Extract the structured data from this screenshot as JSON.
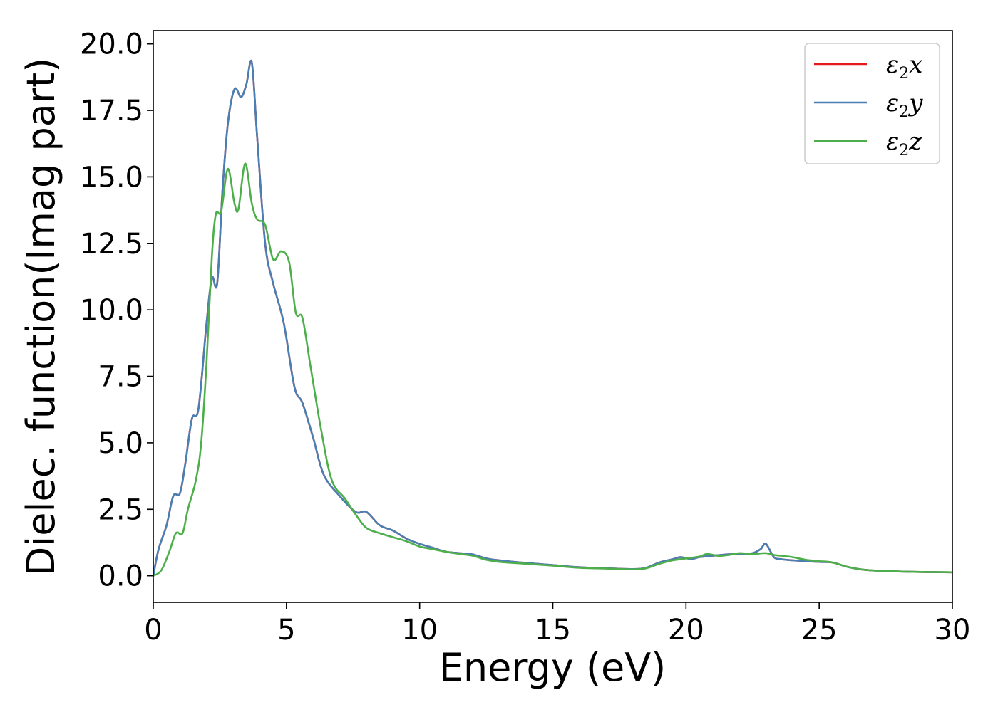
{
  "chart_data": {
    "type": "line",
    "xlabel": "Energy (eV)",
    "ylabel": "Dielec. function(Imag part)",
    "xlim": [
      0,
      30
    ],
    "ylim": [
      -1.0,
      20.5
    ],
    "xticks": [
      0,
      5,
      10,
      15,
      20,
      25,
      30
    ],
    "xtick_labels": [
      "0",
      "5",
      "10",
      "15",
      "20",
      "25",
      "30"
    ],
    "yticks": [
      0,
      2.5,
      5,
      7.5,
      10,
      12.5,
      15,
      17.5,
      20
    ],
    "ytick_labels": [
      "0.0",
      "2.5",
      "5.0",
      "7.5",
      "10.0",
      "12.5",
      "15.0",
      "17.5",
      "20.0"
    ],
    "grid": false,
    "legend_position": "top-right",
    "series": [
      {
        "name": "ε2x",
        "legend_main": "ε",
        "legend_sub": "2",
        "legend_tail": "x",
        "color": "#e41a1c",
        "x": [
          0,
          0.2,
          0.5,
          0.75,
          1.0,
          1.2,
          1.45,
          1.7,
          2.0,
          2.2,
          2.4,
          2.6,
          2.8,
          3.05,
          3.3,
          3.5,
          3.7,
          3.9,
          4.2,
          4.5,
          4.9,
          5.3,
          5.6,
          6.0,
          6.4,
          7.0,
          7.6,
          8.0,
          8.5,
          9.0,
          9.5,
          10.0,
          10.5,
          11.0,
          11.5,
          12.0,
          12.5,
          13.0,
          14.0,
          15.0,
          16.0,
          17.0,
          18.0,
          18.5,
          19.0,
          19.5,
          19.8,
          20.2,
          20.5,
          21.0,
          21.5,
          22.0,
          22.5,
          22.8,
          23.0,
          23.3,
          23.6,
          24.0,
          24.5,
          25.0,
          25.5,
          26.0,
          26.5,
          27.0,
          28.0,
          29.0,
          30.0
        ],
        "y": [
          0.0,
          1.0,
          1.9,
          3.0,
          3.1,
          4.2,
          5.9,
          6.3,
          9.5,
          11.2,
          11.0,
          14.5,
          17.0,
          18.3,
          18.0,
          18.5,
          19.3,
          16.5,
          12.5,
          11.0,
          9.5,
          7.1,
          6.5,
          5.2,
          3.8,
          3.0,
          2.4,
          2.4,
          1.9,
          1.7,
          1.4,
          1.2,
          1.05,
          0.9,
          0.85,
          0.8,
          0.65,
          0.58,
          0.48,
          0.4,
          0.32,
          0.28,
          0.25,
          0.3,
          0.5,
          0.62,
          0.7,
          0.63,
          0.7,
          0.75,
          0.8,
          0.82,
          0.85,
          1.0,
          1.2,
          0.7,
          0.62,
          0.58,
          0.55,
          0.52,
          0.5,
          0.35,
          0.25,
          0.2,
          0.16,
          0.14,
          0.13
        ]
      },
      {
        "name": "ε2y",
        "legend_main": "ε",
        "legend_sub": "2",
        "legend_tail": "y",
        "color": "#4a7fb3",
        "x": [
          0,
          0.2,
          0.5,
          0.75,
          1.0,
          1.2,
          1.45,
          1.7,
          2.0,
          2.2,
          2.4,
          2.6,
          2.8,
          3.05,
          3.3,
          3.5,
          3.7,
          3.9,
          4.2,
          4.5,
          4.9,
          5.3,
          5.6,
          6.0,
          6.4,
          7.0,
          7.6,
          8.0,
          8.5,
          9.0,
          9.5,
          10.0,
          10.5,
          11.0,
          11.5,
          12.0,
          12.5,
          13.0,
          14.0,
          15.0,
          16.0,
          17.0,
          18.0,
          18.5,
          19.0,
          19.5,
          19.8,
          20.2,
          20.5,
          21.0,
          21.5,
          22.0,
          22.5,
          22.8,
          23.0,
          23.3,
          23.6,
          24.0,
          24.5,
          25.0,
          25.5,
          26.0,
          26.5,
          27.0,
          28.0,
          29.0,
          30.0
        ],
        "y": [
          0.0,
          1.0,
          1.9,
          3.0,
          3.1,
          4.2,
          5.9,
          6.3,
          9.5,
          11.2,
          11.0,
          14.5,
          17.0,
          18.3,
          18.0,
          18.5,
          19.3,
          16.5,
          12.5,
          11.0,
          9.5,
          7.1,
          6.5,
          5.2,
          3.8,
          3.0,
          2.4,
          2.4,
          1.9,
          1.7,
          1.4,
          1.2,
          1.05,
          0.9,
          0.85,
          0.8,
          0.65,
          0.58,
          0.48,
          0.4,
          0.32,
          0.28,
          0.25,
          0.3,
          0.5,
          0.62,
          0.7,
          0.63,
          0.7,
          0.75,
          0.8,
          0.82,
          0.85,
          1.0,
          1.2,
          0.7,
          0.62,
          0.58,
          0.55,
          0.52,
          0.5,
          0.35,
          0.25,
          0.2,
          0.16,
          0.14,
          0.13
        ]
      },
      {
        "name": "ε2z",
        "legend_main": "ε",
        "legend_sub": "2",
        "legend_tail": "z",
        "color": "#4daf4a",
        "x": [
          0,
          0.3,
          0.6,
          0.85,
          1.1,
          1.3,
          1.6,
          1.8,
          2.0,
          2.2,
          2.35,
          2.55,
          2.8,
          3.05,
          3.2,
          3.45,
          3.7,
          3.9,
          4.2,
          4.5,
          4.8,
          5.1,
          5.35,
          5.6,
          5.9,
          6.3,
          6.7,
          7.2,
          7.6,
          8.0,
          8.5,
          9.0,
          9.5,
          10.0,
          10.5,
          11.0,
          11.5,
          12.0,
          12.5,
          13.0,
          14.0,
          15.0,
          16.0,
          17.0,
          18.0,
          18.5,
          19.0,
          19.5,
          20.0,
          20.5,
          20.8,
          21.2,
          21.6,
          22.0,
          22.5,
          23.0,
          23.3,
          23.6,
          24.0,
          24.5,
          25.0,
          25.5,
          26.0,
          26.5,
          27.0,
          28.0,
          29.0,
          30.0
        ],
        "y": [
          0.0,
          0.2,
          0.9,
          1.6,
          1.6,
          2.5,
          3.6,
          5.0,
          8.0,
          12.0,
          13.6,
          13.7,
          15.3,
          14.0,
          13.8,
          15.5,
          14.0,
          13.4,
          13.2,
          11.9,
          12.2,
          11.8,
          9.9,
          9.7,
          7.9,
          5.5,
          3.6,
          2.9,
          2.3,
          1.8,
          1.6,
          1.45,
          1.3,
          1.1,
          1.0,
          0.9,
          0.82,
          0.75,
          0.6,
          0.52,
          0.45,
          0.38,
          0.3,
          0.27,
          0.24,
          0.28,
          0.45,
          0.58,
          0.65,
          0.72,
          0.82,
          0.75,
          0.78,
          0.85,
          0.82,
          0.85,
          0.78,
          0.75,
          0.7,
          0.6,
          0.55,
          0.5,
          0.35,
          0.25,
          0.2,
          0.16,
          0.14,
          0.13
        ]
      }
    ]
  }
}
